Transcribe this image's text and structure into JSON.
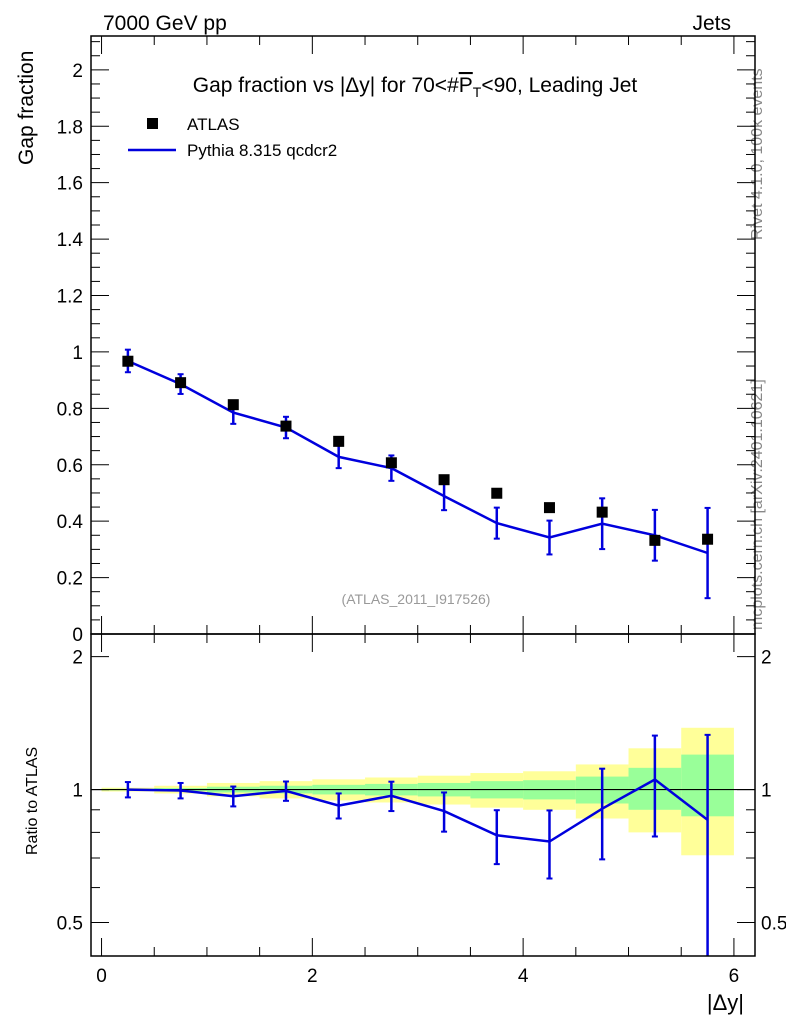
{
  "header": {
    "left": "7000 GeV pp",
    "right": "Jets"
  },
  "side_texts": {
    "rivet": "Rivet 4.1.0,  100k events",
    "mcplots": "mcplots.cern.ch [arXiv:2401.10621]"
  },
  "colors": {
    "mc": "#0000dd",
    "data": "#000000",
    "band_outer": "#ffff99",
    "band_inner": "#99ff99",
    "watermark": "#999999"
  },
  "chart_data": [
    {
      "type": "scatter",
      "panel": "main",
      "title_parts": {
        "pre": "Gap fraction vs |Δy| for 70<#",
        "sym": "P",
        "sub": "T",
        "post": "<90, Leading Jet"
      },
      "ylabel": "Gap fraction",
      "watermark": "(ATLAS_2011_I917526)",
      "xlim": [
        -0.1,
        6.2
      ],
      "ylim": [
        0,
        2.12
      ],
      "yticks": [
        0,
        0.2,
        0.4,
        0.6,
        0.8,
        1,
        1.2,
        1.4,
        1.6,
        1.8,
        2
      ],
      "ytick_labels": [
        "0",
        "0.2",
        "0.4",
        "0.6",
        "0.8",
        "1",
        "1.2",
        "1.4",
        "1.6",
        "1.8",
        "2"
      ],
      "legend": [
        {
          "name": "ATLAS",
          "style": "marker"
        },
        {
          "name": "Pythia 8.315 qcdcr2",
          "style": "line"
        }
      ],
      "series": [
        {
          "name": "ATLAS",
          "x": [
            0.25,
            0.75,
            1.25,
            1.75,
            2.25,
            2.75,
            3.25,
            3.75,
            4.25,
            4.75,
            5.25,
            5.75
          ],
          "y": [
            0.967,
            0.891,
            0.813,
            0.737,
            0.683,
            0.607,
            0.547,
            0.499,
            0.448,
            0.432,
            0.332,
            0.336
          ]
        },
        {
          "name": "Pythia 8.315 qcdcr2",
          "x": [
            0.25,
            0.75,
            1.25,
            1.75,
            2.25,
            2.75,
            3.25,
            3.75,
            4.25,
            4.75,
            5.25,
            5.75
          ],
          "y": [
            0.968,
            0.886,
            0.785,
            0.732,
            0.628,
            0.588,
            0.489,
            0.393,
            0.342,
            0.391,
            0.35,
            0.287
          ],
          "err_lo": [
            0.04,
            0.035,
            0.04,
            0.038,
            0.04,
            0.045,
            0.05,
            0.055,
            0.06,
            0.09,
            0.09,
            0.16
          ],
          "err_hi": [
            0.04,
            0.035,
            0.04,
            0.038,
            0.04,
            0.045,
            0.05,
            0.055,
            0.06,
            0.09,
            0.09,
            0.16
          ]
        }
      ]
    },
    {
      "type": "line",
      "panel": "ratio",
      "ylabel": "Ratio to ATLAS",
      "xlabel": "|Δy|",
      "xlim": [
        -0.1,
        6.2
      ],
      "ylim": [
        0.42,
        2.25
      ],
      "yscale": "log",
      "yticks": [
        0.5,
        1,
        2
      ],
      "ytick_labels": [
        "0.5",
        "1",
        "2"
      ],
      "xticks": [
        0,
        2,
        4,
        6
      ],
      "xtick_labels": [
        "0",
        "2",
        "4",
        "6"
      ],
      "bins": [
        0,
        0.5,
        1,
        1.5,
        2,
        2.5,
        3,
        3.5,
        4,
        4.5,
        5,
        5.5,
        6
      ],
      "band_outer": [
        [
          0.99,
          1.01
        ],
        [
          0.98,
          1.02
        ],
        [
          0.965,
          1.035
        ],
        [
          0.955,
          1.045
        ],
        [
          0.945,
          1.055
        ],
        [
          0.935,
          1.065
        ],
        [
          0.925,
          1.075
        ],
        [
          0.91,
          1.09
        ],
        [
          0.9,
          1.1
        ],
        [
          0.86,
          1.14
        ],
        [
          0.8,
          1.24
        ],
        [
          0.71,
          1.38
        ]
      ],
      "band_inner": [
        [
          0.996,
          1.004
        ],
        [
          0.992,
          1.008
        ],
        [
          0.985,
          1.015
        ],
        [
          0.98,
          1.02
        ],
        [
          0.975,
          1.025
        ],
        [
          0.97,
          1.03
        ],
        [
          0.965,
          1.035
        ],
        [
          0.955,
          1.045
        ],
        [
          0.95,
          1.05
        ],
        [
          0.93,
          1.07
        ],
        [
          0.9,
          1.12
        ],
        [
          0.87,
          1.2
        ]
      ],
      "series": [
        {
          "name": "Pythia 8.315 qcdcr2 / ATLAS",
          "x": [
            0.25,
            0.75,
            1.25,
            1.75,
            2.25,
            2.75,
            3.25,
            3.75,
            4.25,
            4.75,
            5.25,
            5.75
          ],
          "y": [
            1.0,
            0.995,
            0.966,
            0.993,
            0.92,
            0.968,
            0.894,
            0.788,
            0.763,
            0.905,
            1.054,
            0.854
          ],
          "err_lo": [
            0.04,
            0.04,
            0.05,
            0.05,
            0.06,
            0.074,
            0.091,
            0.11,
            0.134,
            0.21,
            0.271,
            0.476
          ],
          "err_hi": [
            0.04,
            0.04,
            0.05,
            0.05,
            0.06,
            0.074,
            0.091,
            0.11,
            0.134,
            0.21,
            0.271,
            0.476
          ]
        }
      ]
    }
  ]
}
